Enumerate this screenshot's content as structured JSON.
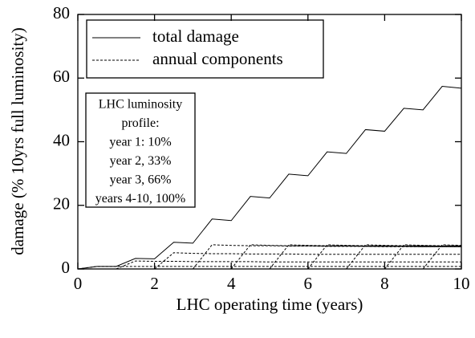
{
  "chart_data": {
    "type": "line",
    "xlabel": "LHC operating time (years)",
    "ylabel": "damage (% 10yrs full luminosity)",
    "x": [
      0,
      0.5,
      1,
      1.5,
      2,
      2.5,
      3,
      3.5,
      4,
      4.5,
      5,
      5.5,
      6,
      6.5,
      7,
      7.5,
      8,
      8.5,
      9,
      9.5,
      10
    ],
    "series": [
      {
        "name": "total damage",
        "color": "#000000",
        "dashed": false,
        "values": [
          0,
          0.8,
          0.8,
          3.3,
          3.2,
          8.4,
          8.1,
          15.7,
          15.2,
          22.8,
          22.3,
          29.8,
          29.3,
          36.8,
          36.3,
          43.8,
          43.3,
          50.5,
          50,
          57.4,
          56.8
        ]
      },
      {
        "name": "annual components",
        "color": "#000000",
        "dashed": true,
        "components": [
          [
            0,
            0.8,
            0.8,
            0.8,
            0.8,
            0.8,
            0.8,
            0.8,
            0.8,
            0.8,
            0.8,
            0.8,
            0.8,
            0.8,
            0.8,
            0.8,
            0.8,
            0.8,
            0.8,
            0.8,
            0.8
          ],
          [
            null,
            null,
            0,
            2.5,
            2.4,
            2.4,
            2.3,
            2.3,
            2.3,
            2.3,
            2.2,
            2.2,
            2.2,
            2.2,
            2.2,
            2.2,
            2.2,
            2.2,
            2.2,
            2.2,
            2.2
          ],
          [
            null,
            null,
            null,
            null,
            0,
            5.1,
            4.9,
            4.8,
            4.8,
            4.7,
            4.7,
            4.7,
            4.6,
            4.6,
            4.6,
            4.6,
            4.6,
            4.6,
            4.6,
            4.6,
            4.6
          ],
          [
            null,
            null,
            null,
            null,
            null,
            null,
            0,
            7.6,
            7.4,
            7.3,
            7.3,
            7.2,
            7.2,
            7.1,
            7.1,
            7.1,
            7.0,
            7.0,
            7.0,
            7.0,
            7.0
          ],
          [
            null,
            null,
            null,
            null,
            null,
            null,
            null,
            null,
            0,
            7.6,
            7.4,
            7.3,
            7.3,
            7.2,
            7.2,
            7.1,
            7.1,
            7.1,
            7.0,
            7.0,
            7.0
          ],
          [
            null,
            null,
            null,
            null,
            null,
            null,
            null,
            null,
            null,
            null,
            0,
            7.6,
            7.4,
            7.3,
            7.3,
            7.2,
            7.2,
            7.1,
            7.1,
            7.1,
            7.0
          ],
          [
            null,
            null,
            null,
            null,
            null,
            null,
            null,
            null,
            null,
            null,
            null,
            null,
            0,
            7.6,
            7.4,
            7.3,
            7.3,
            7.2,
            7.2,
            7.1,
            7.1
          ],
          [
            null,
            null,
            null,
            null,
            null,
            null,
            null,
            null,
            null,
            null,
            null,
            null,
            null,
            null,
            0,
            7.6,
            7.4,
            7.3,
            7.3,
            7.2,
            7.2
          ],
          [
            null,
            null,
            null,
            null,
            null,
            null,
            null,
            null,
            null,
            null,
            null,
            null,
            null,
            null,
            null,
            null,
            0,
            7.6,
            7.4,
            7.3,
            7.3
          ],
          [
            null,
            null,
            null,
            null,
            null,
            null,
            null,
            null,
            null,
            null,
            null,
            null,
            null,
            null,
            null,
            null,
            null,
            null,
            0,
            7.6,
            7.4
          ]
        ]
      }
    ],
    "annotation": [
      "LHC luminosity",
      "profile:",
      "year 1: 10%",
      "year 2, 33%",
      "year 3, 66%",
      "years 4-10, 100%"
    ],
    "xlim": [
      0,
      10
    ],
    "xticks": [
      0,
      2,
      4,
      6,
      8,
      10
    ],
    "ylim": [
      0,
      80
    ],
    "yticks": [
      0,
      20,
      40,
      60,
      80
    ],
    "grid": false
  }
}
